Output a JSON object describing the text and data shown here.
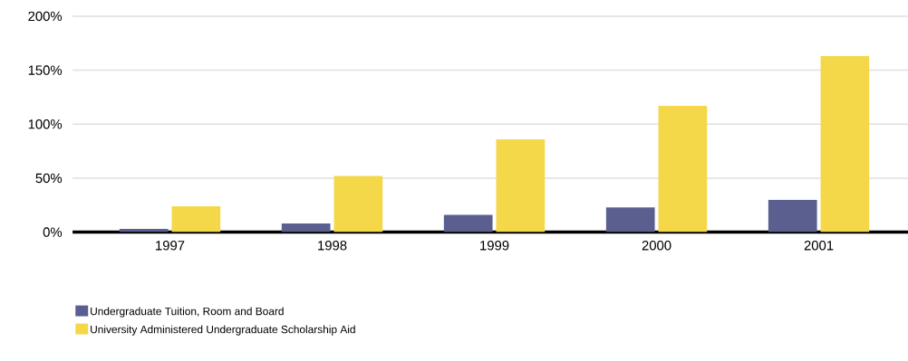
{
  "chart_data": {
    "type": "bar",
    "categories": [
      "1997",
      "1998",
      "1999",
      "2000",
      "2001"
    ],
    "series": [
      {
        "name": "Undergraduate Tuition, Room and Board",
        "color": "#5a5f8f",
        "values": [
          3,
          8,
          16,
          23,
          30
        ]
      },
      {
        "name": "University Administered Undergraduate Scholarship Aid",
        "color": "#f4d84a",
        "values": [
          24,
          52,
          86,
          117,
          163
        ]
      }
    ],
    "ylim": [
      0,
      200
    ],
    "yticks": [
      {
        "value": 0,
        "label": "0%"
      },
      {
        "value": 50,
        "label": "50%"
      },
      {
        "value": 100,
        "label": "100%"
      },
      {
        "value": 150,
        "label": "150%"
      },
      {
        "value": 200,
        "label": "200%"
      }
    ],
    "grid": "y",
    "legend": "bottom"
  }
}
